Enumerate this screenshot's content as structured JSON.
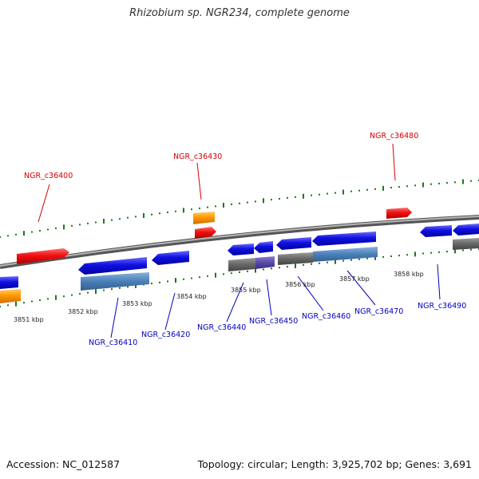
{
  "title": "Rhizobium sp. NGR234, complete genome",
  "footer": {
    "accession": "Accession: NC_012587",
    "summary": "Topology: circular; Length: 3,925,702 bp; Genes: 3,691"
  },
  "colors": {
    "forward_label": "#d40000",
    "reverse_label": "#0000c0",
    "tick": "#1a7a1a",
    "backbone": "#808080",
    "gene_blue": "#1010e0",
    "gene_red": "#f01010",
    "gene_orange": "#ff9900",
    "band_steel": "#5a8ac0",
    "band_gray": "#6a6a6a"
  },
  "kbp_labels": [
    "3851 kbp",
    "3852 kbp",
    "3853 kbp",
    "3854 kbp",
    "3855 kbp",
    "3856 kbp",
    "3857 kbp",
    "3858 kbp"
  ],
  "forward_gene_labels": [
    "NGR_c36400",
    "NGR_c36430",
    "NGR_c36480"
  ],
  "reverse_gene_labels": [
    "NGR_c36410",
    "NGR_c36420",
    "NGR_c36440",
    "NGR_c36450",
    "NGR_c36460",
    "NGR_c36470",
    "NGR_c36490"
  ]
}
